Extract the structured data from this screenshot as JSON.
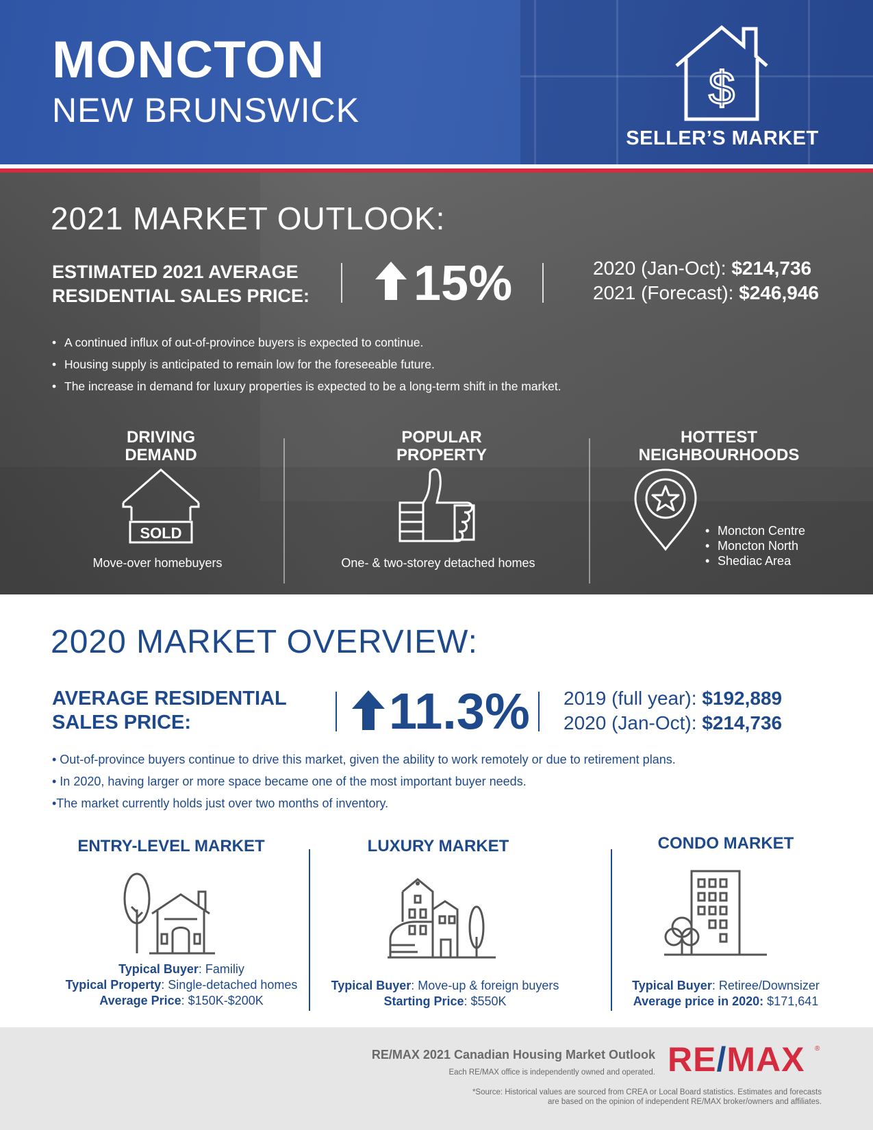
{
  "header": {
    "city": "MONCTON",
    "province": "NEW BRUNSWICK",
    "market_type": "SELLER’S MARKET",
    "market_icon": "house-dollar-icon"
  },
  "outlook": {
    "title": "2021 MARKET OUTLOOK:",
    "label_line1": "ESTIMATED 2021 AVERAGE",
    "label_line2": "RESIDENTIAL SALES PRICE:",
    "percent": "15%",
    "percent_direction": "up",
    "price1_label": "2020 (Jan-Oct): ",
    "price1_value": "$214,736",
    "price2_label": "2021 (Forecast): ",
    "price2_value": "$246,946",
    "bullets": [
      "A continued influx of out-of-province buyers is expected to continue.",
      "Housing supply is anticipated to remain low for the foreseeable future.",
      "The increase in demand for luxury properties is expected to be a long-term shift in the market."
    ],
    "columns": {
      "driving": {
        "title_line1": "DRIVING",
        "title_line2": "DEMAND",
        "icon": "sold-house-icon",
        "sold_label": "SOLD",
        "caption": "Move-over homebuyers"
      },
      "popular": {
        "title_line1": "POPULAR",
        "title_line2": "PROPERTY",
        "icon": "thumbs-up-icon",
        "caption": "One- & two-storey detached homes"
      },
      "hottest": {
        "title_line1": "HOTTEST",
        "title_line2": "NEIGHBOURHOODS",
        "icon": "map-pin-star-icon",
        "items": [
          "Moncton Centre",
          "Moncton North",
          "Shediac Area"
        ]
      }
    }
  },
  "overview": {
    "title": "2020 MARKET OVERVIEW:",
    "label_line1": "AVERAGE RESIDENTIAL",
    "label_line2": "SALES PRICE:",
    "percent": "11.3%",
    "percent_direction": "up",
    "price1_label": "2019 (full year): ",
    "price1_value": "$192,889",
    "price2_label": "2020 (Jan-Oct): ",
    "price2_value": "$214,736",
    "bullets": [
      "• Out-of-province buyers continue to drive this market, given the ability to work remotely or due to retirement plans.",
      "• In 2020, having larger or more space became one of the most important buyer needs.",
      "•The market currently holds just over two months of inventory."
    ],
    "markets": {
      "entry": {
        "title": "ENTRY-LEVEL MARKET",
        "icon": "house-tree-icon",
        "line1_label": "Typical Buyer",
        "line1_value": ": Familiy",
        "line2_label": "Typical Property",
        "line2_value": ": Single-detached homes",
        "line3_label": "Average Price",
        "line3_value": ": $150K-$200K"
      },
      "luxury": {
        "title": "LUXURY MARKET",
        "icon": "luxury-house-icon",
        "line1_label": "Typical Buyer",
        "line1_value": ": Move-up & foreign buyers",
        "line2_label": "Starting Price",
        "line2_value": ": $550K"
      },
      "condo": {
        "title": "CONDO MARKET",
        "icon": "condo-building-icon",
        "line1_label": "Typical Buyer",
        "line1_value": ": Retiree/Downsizer",
        "line2_label": "Average price in 2020:",
        "line2_value": " $171,641"
      }
    }
  },
  "footer": {
    "title": "RE/MAX 2021 Canadian Housing Market Outlook",
    "ownership": "Each RE/MAX office is independently owned and operated.",
    "source_line1": "*Source: Historical values are sourced from CREA or Local Board statistics. Estimates and forecasts",
    "source_line2": "are based on the opinion of independent RE/MAX broker/owners and affiliates.",
    "logo_left": "RE",
    "logo_slash": "/",
    "logo_right": "MAX",
    "logo_reg": "®",
    "colors": {
      "brand_blue": "#1e4a8c",
      "brand_red": "#d52b3f",
      "header_blue": "#3a61b0"
    }
  }
}
